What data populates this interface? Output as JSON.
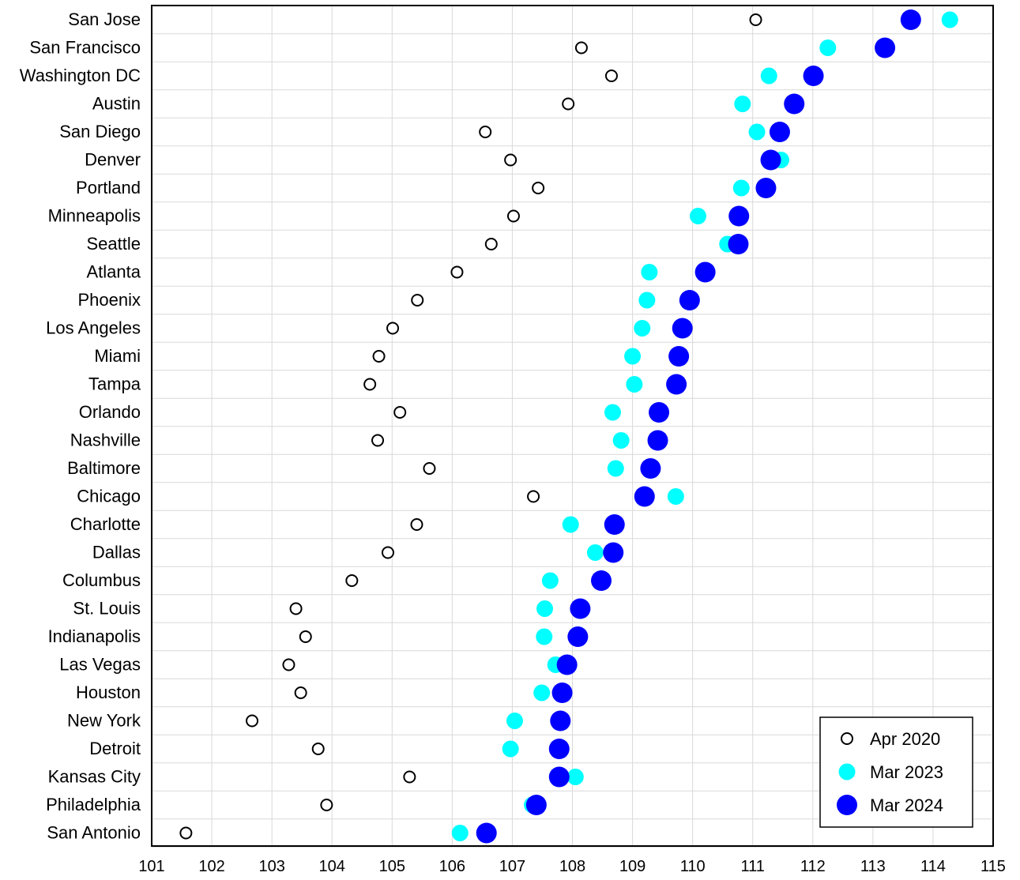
{
  "chart_data": {
    "type": "scatter",
    "orientation": "horizontal-dot-plot",
    "categories": [
      "San Jose",
      "San Francisco",
      "Washington DC",
      "Austin",
      "San Diego",
      "Denver",
      "Portland",
      "Minneapolis",
      "Seattle",
      "Atlanta",
      "Phoenix",
      "Los Angeles",
      "Miami",
      "Tampa",
      "Orlando",
      "Nashville",
      "Baltimore",
      "Chicago",
      "Charlotte",
      "Dallas",
      "Columbus",
      "St. Louis",
      "Indianapolis",
      "Las Vegas",
      "Houston",
      "New York",
      "Detroit",
      "Kansas City",
      "Philadelphia",
      "San Antonio"
    ],
    "series": [
      {
        "name": "Apr 2020",
        "style": "hollow-circle",
        "color": "#000000",
        "values": [
          111.05,
          108.15,
          108.65,
          107.93,
          106.55,
          106.97,
          107.43,
          107.02,
          106.65,
          106.08,
          105.42,
          105.01,
          104.78,
          104.63,
          105.13,
          104.76,
          105.62,
          107.35,
          105.41,
          104.93,
          104.33,
          103.4,
          103.56,
          103.28,
          103.48,
          102.67,
          103.77,
          105.29,
          103.91,
          101.57
        ]
      },
      {
        "name": "Mar 2023",
        "style": "filled-circle",
        "color": "#00FFFF",
        "values": [
          114.28,
          112.25,
          111.27,
          110.83,
          111.07,
          111.47,
          110.81,
          110.09,
          110.58,
          109.28,
          109.24,
          109.16,
          109.0,
          109.03,
          108.67,
          108.81,
          108.72,
          109.72,
          107.97,
          108.38,
          107.63,
          107.54,
          107.53,
          107.72,
          107.49,
          107.04,
          106.97,
          108.05,
          107.33,
          106.13
        ]
      },
      {
        "name": "Mar 2024",
        "style": "filled-circle",
        "color": "#0000FF",
        "values": [
          113.63,
          113.2,
          112.01,
          111.69,
          111.45,
          111.3,
          111.22,
          110.77,
          110.76,
          110.21,
          109.95,
          109.83,
          109.77,
          109.73,
          109.44,
          109.42,
          109.3,
          109.2,
          108.7,
          108.68,
          108.48,
          108.13,
          108.09,
          107.91,
          107.83,
          107.8,
          107.78,
          107.78,
          107.4,
          106.57
        ]
      }
    ],
    "x_ticks": [
      101,
      102,
      103,
      104,
      105,
      106,
      107,
      108,
      109,
      110,
      111,
      112,
      113,
      114,
      115
    ],
    "xlim": [
      101,
      115
    ],
    "title": "",
    "xlabel": "",
    "ylabel": "",
    "grid": true,
    "legend_position": "bottom-right"
  }
}
